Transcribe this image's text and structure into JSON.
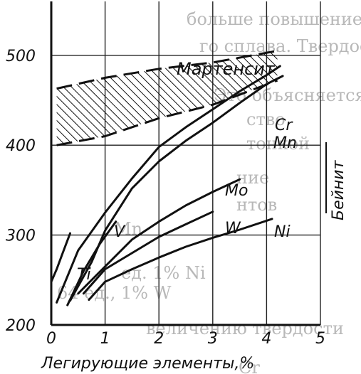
{
  "chart_data": {
    "type": "line",
    "title": "",
    "xlabel": "Легирующие элементы,%",
    "ylabel": "",
    "xlim": [
      0,
      5
    ],
    "ylim": [
      200,
      560
    ],
    "x_ticks": [
      0,
      1,
      2,
      3,
      4,
      5
    ],
    "y_ticks": [
      200,
      300,
      400,
      500
    ],
    "x_tick_labels": [
      "0",
      "1",
      "2",
      "3",
      "4",
      "5"
    ],
    "y_tick_labels": [
      "200",
      "300",
      "400",
      "500"
    ],
    "grid": true,
    "legend": "none",
    "series": [
      {
        "name": "Cr",
        "color": "#111111",
        "x": [
          0.1,
          0.5,
          1.0,
          1.5,
          2.0,
          2.5,
          3.0,
          3.5,
          4.0,
          4.25
        ],
        "y": [
          225,
          283,
          325,
          363,
          398,
          420,
          440,
          460,
          478,
          488
        ]
      },
      {
        "name": "Mn",
        "color": "#111111",
        "x": [
          0.35,
          0.75,
          1.0,
          1.5,
          2.0,
          2.5,
          3.0,
          3.5,
          4.0,
          4.3
        ],
        "y": [
          227,
          270,
          305,
          352,
          382,
          405,
          425,
          447,
          468,
          477
        ]
      },
      {
        "name": "Mo",
        "color": "#111111",
        "x": [
          0.5,
          1.0,
          1.5,
          2.0,
          2.5,
          3.0,
          3.5
        ],
        "y": [
          235,
          265,
          295,
          315,
          333,
          348,
          362
        ]
      },
      {
        "name": "W",
        "color": "#111111",
        "x": [
          0.6,
          1.0,
          1.5,
          2.0,
          2.5,
          3.0
        ],
        "y": [
          235,
          262,
          280,
          298,
          312,
          326
        ]
      },
      {
        "name": "Ni",
        "color": "#111111",
        "x": [
          0.7,
          1.0,
          1.5,
          2.0,
          2.5,
          3.0,
          3.5,
          4.1
        ],
        "y": [
          228,
          248,
          262,
          275,
          287,
          297,
          306,
          318
        ]
      },
      {
        "name": "V",
        "color": "#111111",
        "x": [
          0.3,
          0.6,
          0.9,
          1.2
        ],
        "y": [
          222,
          260,
          290,
          315
        ]
      },
      {
        "name": "Ti",
        "color": "#111111",
        "x": [
          0.0,
          0.1,
          0.2,
          0.35
        ],
        "y": [
          248,
          262,
          278,
          302
        ]
      }
    ],
    "annotations": [
      {
        "text": "Мартенсит"
      },
      {
        "text": "Бейнит"
      }
    ],
    "region": {
      "name": "Мартенсит",
      "lower": [
        [
          0.1,
          400
        ],
        [
          1.0,
          410
        ],
        [
          2.0,
          430
        ],
        [
          3.0,
          445
        ],
        [
          4.2,
          472
        ]
      ],
      "upper": [
        [
          0.1,
          463
        ],
        [
          1.0,
          475
        ],
        [
          2.0,
          485
        ],
        [
          3.0,
          492
        ],
        [
          4.2,
          505
        ]
      ],
      "hatched": true
    }
  },
  "background_text": [
    "больше повышение тве",
    "го сплава. Твердость",
    "Это объясняется",
    "ство",
    "тонкой",
    "ние",
    "нтов",
    "Mn",
    "ед. 1% Ni",
    "64 ед., 1% W",
    "величению твердости",
    "Cr"
  ]
}
